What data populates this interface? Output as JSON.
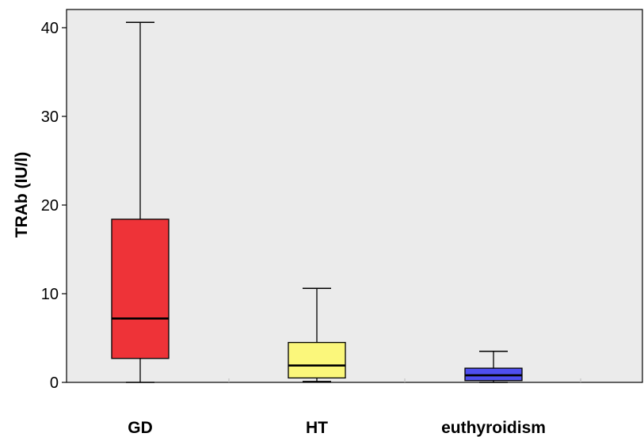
{
  "chart_data": {
    "type": "box",
    "ylabel": "TRAb (IU/l)",
    "xlabel": "",
    "ylim": [
      0,
      42
    ],
    "yticks": [
      0,
      10,
      20,
      30,
      40
    ],
    "grid": false,
    "background": "#ebebeb",
    "categories": [
      "GD",
      "HT",
      "euthyroidism"
    ],
    "boxes": [
      {
        "category": "GD",
        "min": 0,
        "q1": 2.7,
        "median": 7.2,
        "q3": 18.4,
        "max": 40.6,
        "color": "#ee3338"
      },
      {
        "category": "HT",
        "min": 0.1,
        "q1": 0.5,
        "median": 1.9,
        "q3": 4.5,
        "max": 10.6,
        "color": "#fbf77b"
      },
      {
        "category": "euthyroidism",
        "min": 0,
        "q1": 0.2,
        "median": 0.8,
        "q3": 1.6,
        "max": 3.5,
        "color": "#4f4ff0"
      }
    ]
  }
}
